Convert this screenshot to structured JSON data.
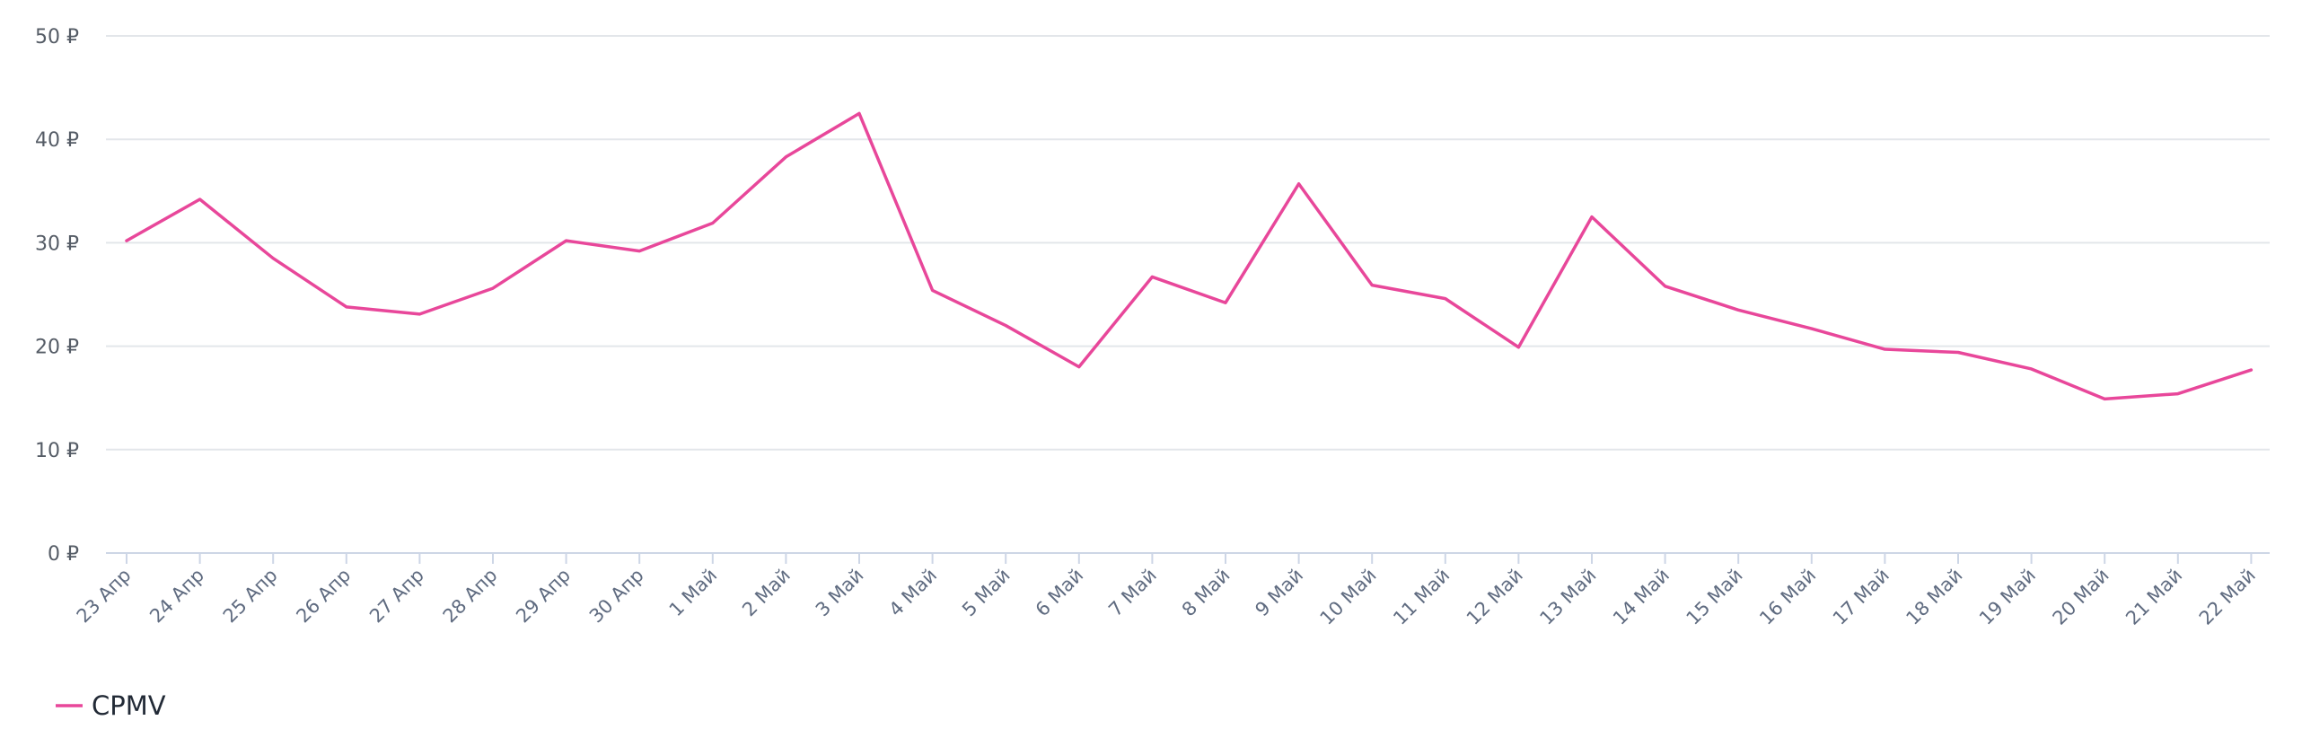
{
  "chart_data": {
    "type": "line",
    "categories": [
      "23 Апр",
      "24 Апр",
      "25 Апр",
      "26 Апр",
      "27 Апр",
      "28 Апр",
      "29 Апр",
      "30 Апр",
      "1 Май",
      "2 Май",
      "3 Май",
      "4 Май",
      "5 Май",
      "6 Май",
      "7 Май",
      "8 Май",
      "9 Май",
      "10 Май",
      "11 Май",
      "12 Май",
      "13 Май",
      "14 Май",
      "15 Май",
      "16 Май",
      "17 Май",
      "18 Май",
      "19 Май",
      "20 Май",
      "21 Май",
      "22 Май"
    ],
    "series": [
      {
        "name": "CPMV",
        "color": "#e8479a",
        "values": [
          30.2,
          34.2,
          28.5,
          23.8,
          23.1,
          25.6,
          30.2,
          29.2,
          31.9,
          38.3,
          42.5,
          25.4,
          22.0,
          18.0,
          26.7,
          24.2,
          35.7,
          25.9,
          24.6,
          19.9,
          32.5,
          25.8,
          23.5,
          21.7,
          19.7,
          19.4,
          17.8,
          14.9,
          15.4,
          17.7
        ]
      }
    ],
    "y_ticks": [
      "0 ₽",
      "10 ₽",
      "20 ₽",
      "30 ₽",
      "40 ₽",
      "50 ₽"
    ],
    "ylim": [
      0,
      50
    ],
    "grid": true,
    "legend": "bottom-left",
    "title": "",
    "xlabel": "",
    "ylabel": ""
  }
}
